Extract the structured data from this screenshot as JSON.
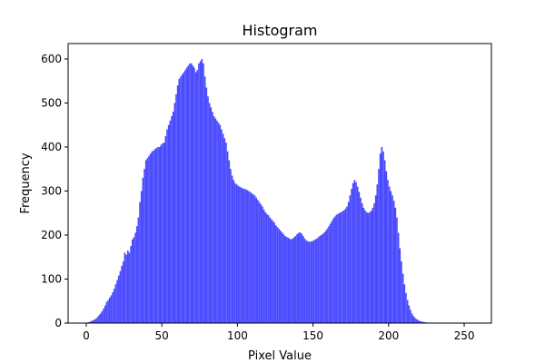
{
  "chart_data": {
    "type": "bar",
    "title": "Histogram",
    "xlabel": "Pixel Value",
    "ylabel": "Frequency",
    "xlim": [
      -12,
      268
    ],
    "ylim": [
      0,
      635
    ],
    "x_ticks": [
      0,
      50,
      100,
      150,
      200,
      250
    ],
    "y_ticks": [
      0,
      100,
      200,
      300,
      400,
      500,
      600
    ],
    "grid": false,
    "legend": "none",
    "bar_color": "#4a4aff",
    "bin_width": 1,
    "bin_start": 0,
    "values": [
      0,
      2,
      3,
      5,
      6,
      8,
      10,
      14,
      18,
      22,
      27,
      33,
      40,
      48,
      52,
      58,
      63,
      70,
      78,
      88,
      98,
      108,
      118,
      130,
      140,
      160,
      155,
      165,
      160,
      175,
      190,
      195,
      205,
      220,
      240,
      275,
      300,
      330,
      350,
      370,
      375,
      380,
      385,
      390,
      392,
      395,
      398,
      400,
      400,
      405,
      408,
      410,
      425,
      440,
      450,
      460,
      470,
      480,
      500,
      520,
      540,
      555,
      560,
      565,
      570,
      575,
      580,
      585,
      590,
      590,
      585,
      580,
      570,
      575,
      590,
      595,
      600,
      590,
      560,
      535,
      515,
      500,
      490,
      480,
      470,
      465,
      460,
      455,
      450,
      440,
      430,
      420,
      410,
      390,
      370,
      350,
      335,
      325,
      318,
      315,
      312,
      310,
      308,
      306,
      305,
      304,
      302,
      300,
      298,
      295,
      292,
      290,
      285,
      280,
      275,
      270,
      265,
      258,
      252,
      248,
      245,
      240,
      236,
      232,
      228,
      222,
      218,
      214,
      210,
      206,
      202,
      198,
      196,
      194,
      192,
      190,
      192,
      195,
      198,
      202,
      205,
      206,
      203,
      198,
      192,
      188,
      186,
      185,
      185,
      186,
      188,
      190,
      192,
      195,
      198,
      200,
      203,
      206,
      210,
      215,
      220,
      226,
      232,
      238,
      242,
      246,
      248,
      250,
      252,
      254,
      256,
      260,
      265,
      275,
      290,
      305,
      318,
      325,
      320,
      310,
      298,
      285,
      272,
      262,
      256,
      252,
      250,
      252,
      255,
      262,
      272,
      290,
      315,
      350,
      385,
      400,
      390,
      370,
      345,
      325,
      310,
      300,
      290,
      278,
      262,
      240,
      205,
      170,
      140,
      112,
      88,
      68,
      52,
      40,
      30,
      22,
      16,
      12,
      9,
      7,
      5,
      4,
      3,
      2,
      2,
      1
    ]
  }
}
